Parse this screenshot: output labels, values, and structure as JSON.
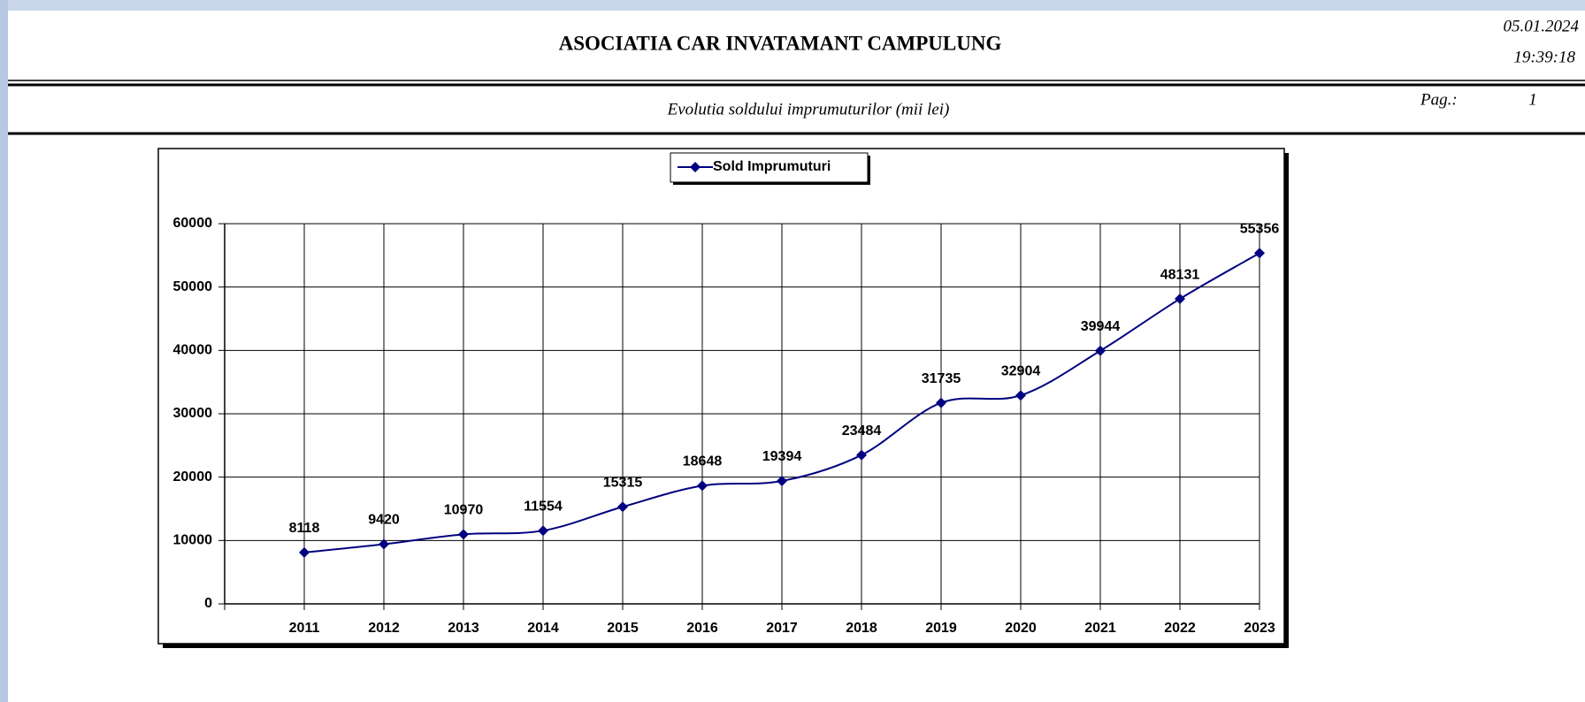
{
  "header": {
    "title": "ASOCIATIA CAR INVATAMANT CAMPULUNG",
    "date": "05.01.2024",
    "time": "19:39:18",
    "subtitle": "Evolutia soldului imprumuturilor (mii lei)",
    "page_label": "Pag.:",
    "page_number": "1"
  },
  "chart_data": {
    "type": "line",
    "categories": [
      "2011",
      "2012",
      "2013",
      "2014",
      "2015",
      "2016",
      "2017",
      "2018",
      "2019",
      "2020",
      "2021",
      "2022",
      "2023"
    ],
    "series": [
      {
        "name": "Sold Imprumuturi",
        "color": "#000080",
        "values": [
          8118,
          9420,
          10970,
          11554,
          15315,
          18648,
          19394,
          23484,
          31735,
          32904,
          39944,
          48131,
          55356
        ]
      }
    ],
    "ylim": [
      0,
      60000
    ],
    "yticks": [
      0,
      10000,
      20000,
      30000,
      40000,
      50000,
      60000
    ],
    "grid": true,
    "smooth": true,
    "legend": "top",
    "data_labels": true
  }
}
